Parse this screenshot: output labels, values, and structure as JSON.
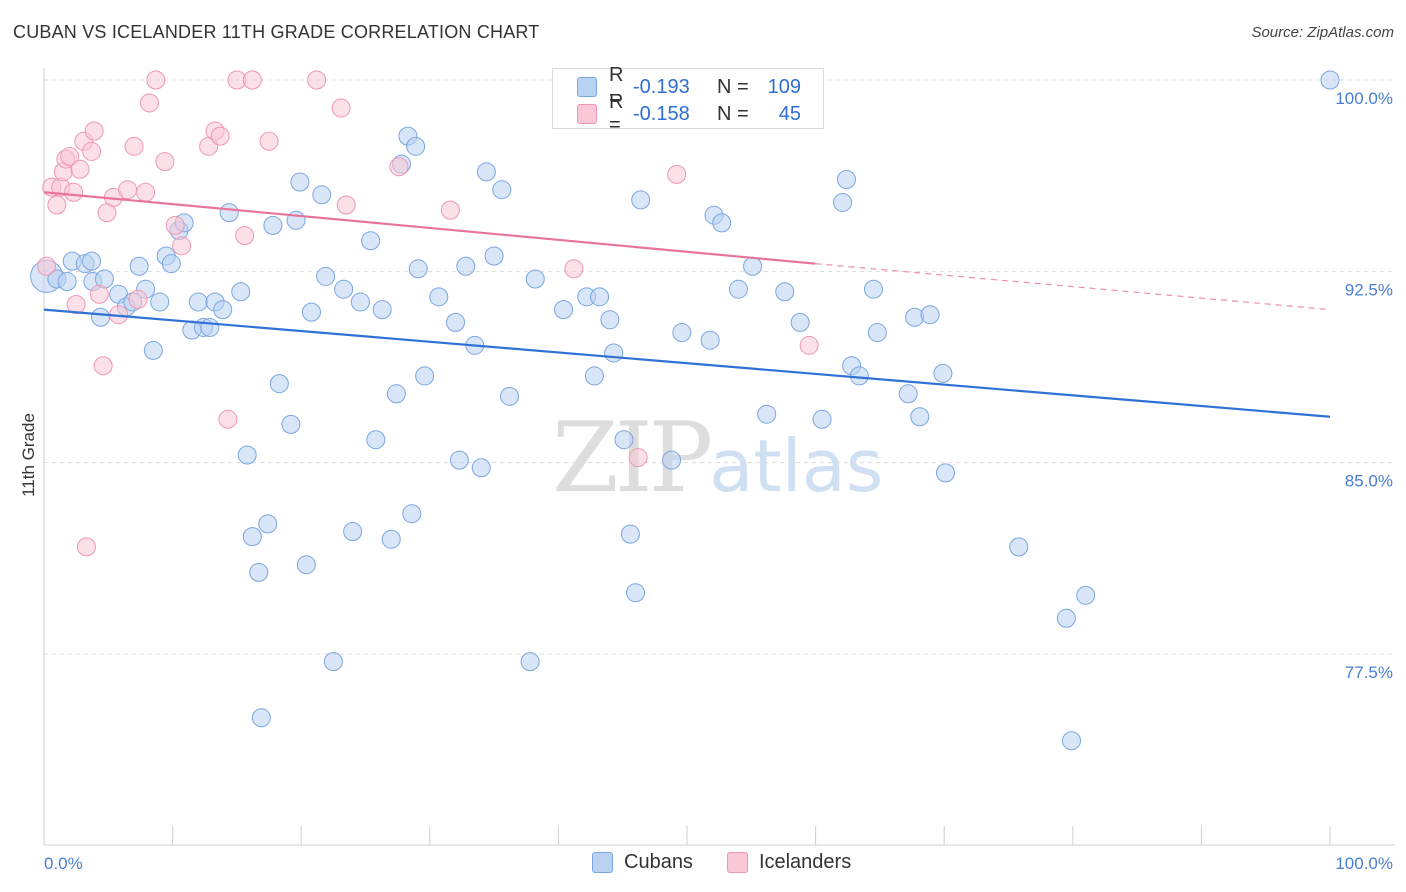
{
  "title": "CUBAN VS ICELANDER 11TH GRADE CORRELATION CHART",
  "source": "Source: ZipAtlas.com",
  "watermark": {
    "zip": "ZIP",
    "atlas": "atlas"
  },
  "legend": {
    "rows": [
      {
        "r_label": "R =",
        "r_value": "-0.193",
        "n_label": "N =",
        "n_value": "109"
      },
      {
        "r_label": "R =",
        "r_value": "-0.158",
        "n_label": "N =",
        "n_value": "45"
      }
    ]
  },
  "bottom_legend": [
    "Cubans",
    "Icelanders"
  ],
  "colors": {
    "cubans_fill": "#b9d2f2",
    "cubans_stroke": "#7aa6e0",
    "cubans_line": "#2f72d6",
    "icelanders_fill": "#f9c7d6",
    "icelanders_stroke": "#ef97b3",
    "icelanders_line": "#e8739b",
    "tick_text": "#4a7fd0",
    "grid": "#dcdcdc"
  },
  "chart_data": {
    "type": "scatter",
    "title": "CUBAN VS ICELANDER 11TH GRADE CORRELATION CHART",
    "xlabel": "",
    "ylabel": "11th Grade",
    "xlim": [
      0,
      100
    ],
    "ylim": [
      70.0,
      100.8
    ],
    "x_tick_labels": [
      "0.0%",
      "100.0%"
    ],
    "y_ticks": [
      100.0,
      92.5,
      85.0,
      77.5
    ],
    "y_tick_labels": [
      "100.0%",
      "92.5%",
      "85.0%",
      "77.5%"
    ],
    "grid": true,
    "legend_position": "top-center",
    "series": [
      {
        "name": "Cubans",
        "points": [
          [
            0.2,
            92.3
          ],
          [
            1.0,
            92.2
          ],
          [
            1.8,
            92.1
          ],
          [
            2.2,
            92.9
          ],
          [
            3.2,
            92.8
          ],
          [
            3.7,
            92.9
          ],
          [
            3.8,
            92.1
          ],
          [
            4.4,
            90.7
          ],
          [
            4.7,
            92.2
          ],
          [
            5.8,
            91.6
          ],
          [
            6.4,
            91.1
          ],
          [
            6.9,
            91.3
          ],
          [
            7.4,
            92.7
          ],
          [
            7.9,
            91.8
          ],
          [
            8.5,
            89.4
          ],
          [
            9.0,
            91.3
          ],
          [
            9.5,
            93.1
          ],
          [
            9.9,
            92.8
          ],
          [
            10.5,
            94.1
          ],
          [
            10.9,
            94.4
          ],
          [
            11.5,
            90.2
          ],
          [
            12.0,
            91.3
          ],
          [
            12.4,
            90.3
          ],
          [
            12.9,
            90.3
          ],
          [
            13.3,
            91.3
          ],
          [
            13.9,
            91.0
          ],
          [
            14.4,
            94.8
          ],
          [
            15.3,
            91.7
          ],
          [
            15.8,
            85.3
          ],
          [
            16.2,
            82.1
          ],
          [
            16.7,
            80.7
          ],
          [
            16.9,
            75.0
          ],
          [
            17.4,
            82.6
          ],
          [
            17.8,
            94.3
          ],
          [
            18.3,
            88.1
          ],
          [
            19.2,
            86.5
          ],
          [
            19.6,
            94.5
          ],
          [
            19.9,
            96.0
          ],
          [
            20.4,
            81.0
          ],
          [
            20.8,
            90.9
          ],
          [
            21.6,
            95.5
          ],
          [
            21.9,
            92.3
          ],
          [
            22.5,
            77.2
          ],
          [
            23.3,
            91.8
          ],
          [
            24.0,
            82.3
          ],
          [
            24.6,
            91.3
          ],
          [
            25.4,
            93.7
          ],
          [
            25.8,
            85.9
          ],
          [
            26.3,
            91.0
          ],
          [
            27.0,
            82.0
          ],
          [
            27.4,
            87.7
          ],
          [
            27.8,
            96.7
          ],
          [
            28.3,
            97.8
          ],
          [
            28.6,
            83.0
          ],
          [
            28.9,
            97.4
          ],
          [
            29.1,
            92.6
          ],
          [
            29.6,
            88.4
          ],
          [
            30.7,
            91.5
          ],
          [
            32.0,
            90.5
          ],
          [
            32.3,
            85.1
          ],
          [
            32.8,
            92.7
          ],
          [
            33.5,
            89.6
          ],
          [
            34.0,
            84.8
          ],
          [
            34.4,
            96.4
          ],
          [
            35.0,
            93.1
          ],
          [
            35.6,
            95.7
          ],
          [
            36.2,
            87.6
          ],
          [
            37.8,
            77.2
          ],
          [
            38.2,
            92.2
          ],
          [
            40.4,
            91.0
          ],
          [
            42.2,
            91.5
          ],
          [
            42.8,
            88.4
          ],
          [
            43.2,
            91.5
          ],
          [
            44.0,
            90.6
          ],
          [
            44.3,
            89.3
          ],
          [
            45.1,
            85.9
          ],
          [
            45.6,
            82.2
          ],
          [
            46.0,
            79.9
          ],
          [
            46.4,
            95.3
          ],
          [
            48.8,
            85.1
          ],
          [
            49.6,
            90.1
          ],
          [
            51.8,
            89.8
          ],
          [
            52.1,
            94.7
          ],
          [
            52.7,
            94.4
          ],
          [
            54.0,
            91.8
          ],
          [
            55.1,
            92.7
          ],
          [
            56.2,
            86.9
          ],
          [
            57.6,
            91.7
          ],
          [
            58.8,
            90.5
          ],
          [
            60.5,
            86.7
          ],
          [
            62.1,
            95.2
          ],
          [
            62.4,
            96.1
          ],
          [
            62.8,
            88.8
          ],
          [
            63.4,
            88.4
          ],
          [
            64.5,
            91.8
          ],
          [
            64.8,
            90.1
          ],
          [
            67.2,
            87.7
          ],
          [
            67.7,
            90.7
          ],
          [
            68.1,
            86.8
          ],
          [
            68.9,
            90.8
          ],
          [
            69.9,
            88.5
          ],
          [
            70.1,
            84.6
          ],
          [
            75.8,
            81.7
          ],
          [
            79.5,
            78.9
          ],
          [
            79.9,
            74.1
          ],
          [
            81.0,
            79.8
          ],
          [
            100.0,
            100.0
          ]
        ]
      },
      {
        "name": "Icelanders",
        "points": [
          [
            0.2,
            92.7
          ],
          [
            0.6,
            95.8
          ],
          [
            1.0,
            95.1
          ],
          [
            1.3,
            95.8
          ],
          [
            1.5,
            96.4
          ],
          [
            1.7,
            96.9
          ],
          [
            2.0,
            97.0
          ],
          [
            2.3,
            95.6
          ],
          [
            2.5,
            91.2
          ],
          [
            2.8,
            96.5
          ],
          [
            3.1,
            97.6
          ],
          [
            3.3,
            81.7
          ],
          [
            3.7,
            97.2
          ],
          [
            3.9,
            98.0
          ],
          [
            4.3,
            91.6
          ],
          [
            4.6,
            88.8
          ],
          [
            4.9,
            94.8
          ],
          [
            5.4,
            95.4
          ],
          [
            5.8,
            90.8
          ],
          [
            6.5,
            95.7
          ],
          [
            7.0,
            97.4
          ],
          [
            7.3,
            91.4
          ],
          [
            7.9,
            95.6
          ],
          [
            8.2,
            99.1
          ],
          [
            9.4,
            96.8
          ],
          [
            10.2,
            94.3
          ],
          [
            10.7,
            93.5
          ],
          [
            12.8,
            97.4
          ],
          [
            13.3,
            98.0
          ],
          [
            13.7,
            97.8
          ],
          [
            14.3,
            86.7
          ],
          [
            15.0,
            100.0
          ],
          [
            15.6,
            93.9
          ],
          [
            16.2,
            100.0
          ],
          [
            17.5,
            97.6
          ],
          [
            21.2,
            100.0
          ],
          [
            23.1,
            98.9
          ],
          [
            23.5,
            95.1
          ],
          [
            27.6,
            96.6
          ],
          [
            31.6,
            94.9
          ],
          [
            41.2,
            92.6
          ],
          [
            46.2,
            85.2
          ],
          [
            49.2,
            96.3
          ],
          [
            59.5,
            89.6
          ],
          [
            8.7,
            100.0
          ]
        ]
      }
    ],
    "trend_lines": [
      {
        "series": "Cubans",
        "x": [
          0,
          100
        ],
        "y": [
          91.0,
          86.8
        ],
        "style": "solid"
      },
      {
        "series": "Icelanders",
        "x": [
          0,
          60,
          100
        ],
        "y": [
          95.6,
          92.8,
          91.0
        ],
        "solid_until": 60,
        "style": "solid-then-dashed"
      }
    ]
  }
}
